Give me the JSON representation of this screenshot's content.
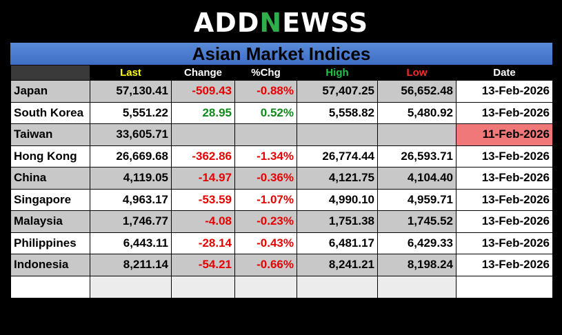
{
  "brand": {
    "logo_part1": "ADD",
    "logo_part2": "N",
    "logo_part3": "EWSS",
    "accent_color": "#2fae49"
  },
  "title": "Asian Market Indices",
  "columns": {
    "name": "",
    "last": "Last",
    "change": "Change",
    "pct": "%Chg",
    "high": "High",
    "low": "Low",
    "date": "Date"
  },
  "header_colors": {
    "last": "#ffff00",
    "change": "#ffffff",
    "pct": "#ffffff",
    "high": "#22c44a",
    "low": "#ff2a2a",
    "date": "#ffffff"
  },
  "rows": [
    {
      "name": "Japan",
      "last": "57,130.41",
      "change": "-509.43",
      "pct": "-0.88%",
      "high": "57,407.25",
      "low": "56,652.48",
      "date": "13-Feb-2026",
      "direction": "down"
    },
    {
      "name": "South Korea",
      "last": "5,551.22",
      "change": "28.95",
      "pct": "0.52%",
      "high": "5,558.82",
      "low": "5,480.92",
      "date": "13-Feb-2026",
      "direction": "up"
    },
    {
      "name": "Taiwan",
      "last": "33,605.71",
      "change": "",
      "pct": "",
      "high": "",
      "low": "",
      "date": "11-Feb-2026",
      "direction": "none"
    },
    {
      "name": "Hong Kong",
      "last": "26,669.68",
      "change": "-362.86",
      "pct": "-1.34%",
      "high": "26,774.44",
      "low": "26,593.71",
      "date": "13-Feb-2026",
      "direction": "down"
    },
    {
      "name": "China",
      "last": "4,119.05",
      "change": "-14.97",
      "pct": "-0.36%",
      "high": "4,121.75",
      "low": "4,104.40",
      "date": "13-Feb-2026",
      "direction": "down"
    },
    {
      "name": "Singapore",
      "last": "4,963.17",
      "change": "-53.59",
      "pct": "-1.07%",
      "high": "4,990.10",
      "low": "4,959.71",
      "date": "13-Feb-2026",
      "direction": "down"
    },
    {
      "name": "Malaysia",
      "last": "1,746.77",
      "change": "-4.08",
      "pct": "-0.23%",
      "high": "1,751.38",
      "low": "1,745.52",
      "date": "13-Feb-2026",
      "direction": "down"
    },
    {
      "name": "Philippines",
      "last": "6,443.11",
      "change": "-28.14",
      "pct": "-0.43%",
      "high": "6,481.17",
      "low": "6,429.33",
      "date": "13-Feb-2026",
      "direction": "down"
    },
    {
      "name": "Indonesia",
      "last": "8,211.14",
      "change": "-54.21",
      "pct": "-0.66%",
      "high": "8,241.21",
      "low": "8,198.24",
      "date": "13-Feb-2026",
      "direction": "down"
    }
  ]
}
